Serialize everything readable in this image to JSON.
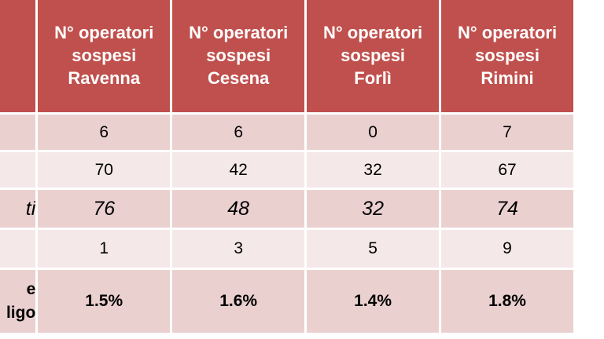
{
  "table": {
    "headers": [
      {
        "lines": []
      },
      {
        "lines": [
          "N° operatori",
          "sospesi",
          "Ravenna"
        ]
      },
      {
        "lines": [
          "N° operatori",
          "sospesi",
          "Cesena"
        ]
      },
      {
        "lines": [
          "N° operatori",
          "sospesi",
          "Forlì"
        ]
      },
      {
        "lines": [
          "N° operatori",
          "sospesi",
          "Rimini"
        ]
      }
    ],
    "rows": [
      {
        "label": "",
        "values": [
          "6",
          "6",
          "0",
          "7"
        ]
      },
      {
        "label": "",
        "values": [
          "70",
          "42",
          "32",
          "67"
        ]
      },
      {
        "label": "ti",
        "values": [
          "76",
          "48",
          "32",
          "74"
        ]
      },
      {
        "label": "",
        "values": [
          "1",
          "3",
          "5",
          "9"
        ]
      },
      {
        "label_lines": [
          "e",
          "ligo"
        ],
        "values": [
          "1.5%",
          "1.6%",
          "1.4%",
          "1.8%"
        ]
      }
    ]
  },
  "colors": {
    "header_bg": "#c0504d",
    "row_dark": "#ebd0d0",
    "row_light": "#f5e8e8",
    "border": "#ffffff"
  }
}
